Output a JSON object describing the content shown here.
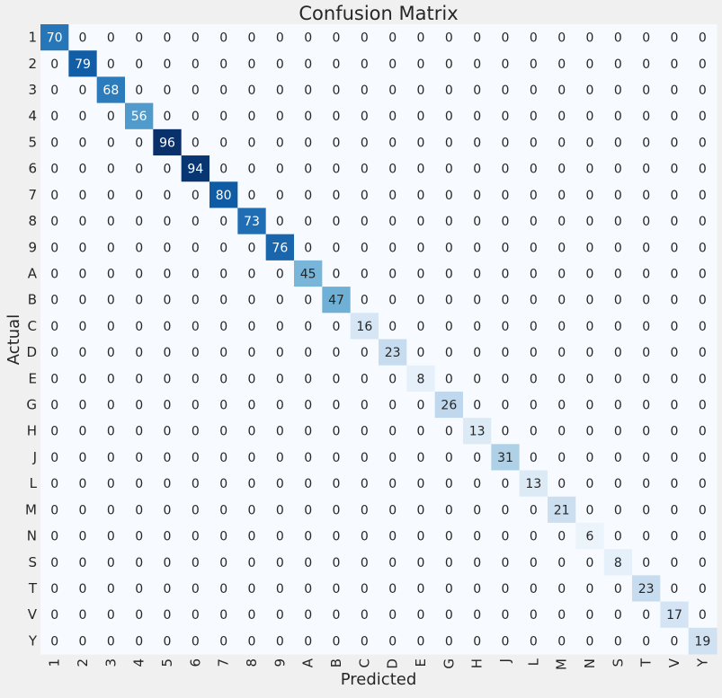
{
  "chart_data": {
    "type": "heatmap",
    "title": "Confusion Matrix",
    "xlabel": "Predicted",
    "ylabel": "Actual",
    "labels": [
      "1",
      "2",
      "3",
      "4",
      "5",
      "6",
      "7",
      "8",
      "9",
      "A",
      "B",
      "C",
      "D",
      "E",
      "G",
      "H",
      "J",
      "L",
      "M",
      "N",
      "S",
      "T",
      "V",
      "Y"
    ],
    "diagonal": [
      70,
      79,
      68,
      56,
      96,
      94,
      80,
      73,
      76,
      45,
      47,
      16,
      23,
      8,
      26,
      13,
      31,
      13,
      21,
      6,
      8,
      23,
      17,
      19
    ],
    "off_diagonal_value": 0,
    "colormap": "Blues",
    "color_low": "#f7fbff",
    "color_high": "#08306b",
    "background": "#f0f0f0",
    "text_dark": "#262626",
    "text_light": "#ffffff"
  }
}
